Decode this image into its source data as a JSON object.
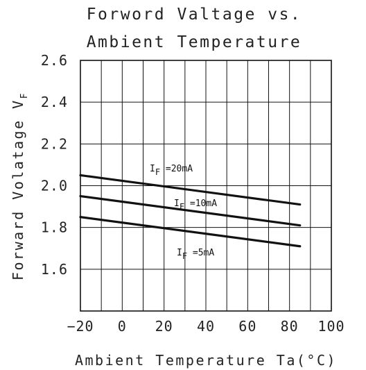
{
  "chart_data": {
    "type": "line",
    "title_lines": [
      "Forword Valtage vs.",
      "Ambient Temperature"
    ],
    "xlabel": "Ambient Temperature Ta(°C)",
    "ylabel": "Forward Volatage V",
    "ylabel_sub": "F",
    "xlim": [
      -20,
      100
    ],
    "ylim": [
      1.4,
      2.6
    ],
    "xticks": [
      -20,
      0,
      20,
      40,
      60,
      80,
      100
    ],
    "xtick_labels": [
      "−20",
      "0",
      "20",
      "40",
      "60",
      "80",
      "100"
    ],
    "yticks": [
      1.6,
      1.8,
      2.0,
      2.2,
      2.4,
      2.6
    ],
    "ytick_labels": [
      "1.6",
      "1.8",
      "2.0",
      "2.2",
      "2.4",
      "2.6"
    ],
    "grid": true,
    "series": [
      {
        "name": "I",
        "name_sub": "F",
        "name_suffix": " =20mA",
        "x": [
          -20,
          85
        ],
        "y": [
          2.05,
          1.91
        ]
      },
      {
        "name": "I",
        "name_sub": "F",
        "name_suffix": " =10mA",
        "x": [
          -20,
          85
        ],
        "y": [
          1.95,
          1.81
        ]
      },
      {
        "name": "I",
        "name_sub": "F",
        "name_suffix": " =5mA",
        "x": [
          -20,
          85
        ],
        "y": [
          1.85,
          1.71
        ]
      }
    ]
  }
}
